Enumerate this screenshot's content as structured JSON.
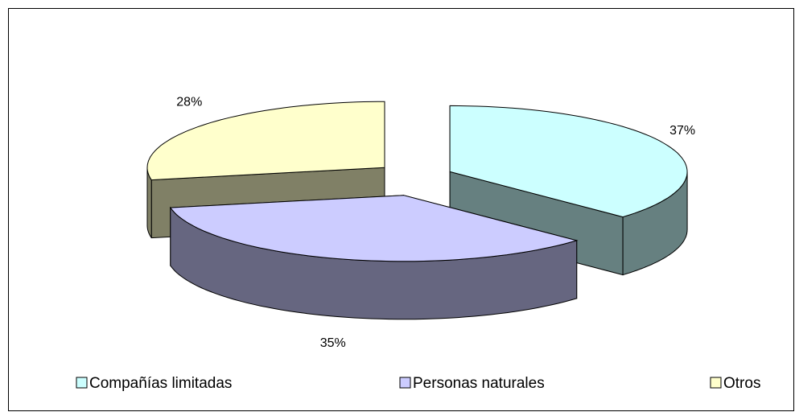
{
  "chart_data": {
    "type": "pie3d",
    "categories": [
      "Compañías limitadas",
      "Personas naturales",
      "Otros"
    ],
    "values": [
      37,
      35,
      28
    ],
    "value_labels": [
      "37%",
      "35%",
      "28%"
    ],
    "colors": [
      "#ccffff",
      "#ccccff",
      "#ffffcc"
    ],
    "legend": "bottom"
  }
}
